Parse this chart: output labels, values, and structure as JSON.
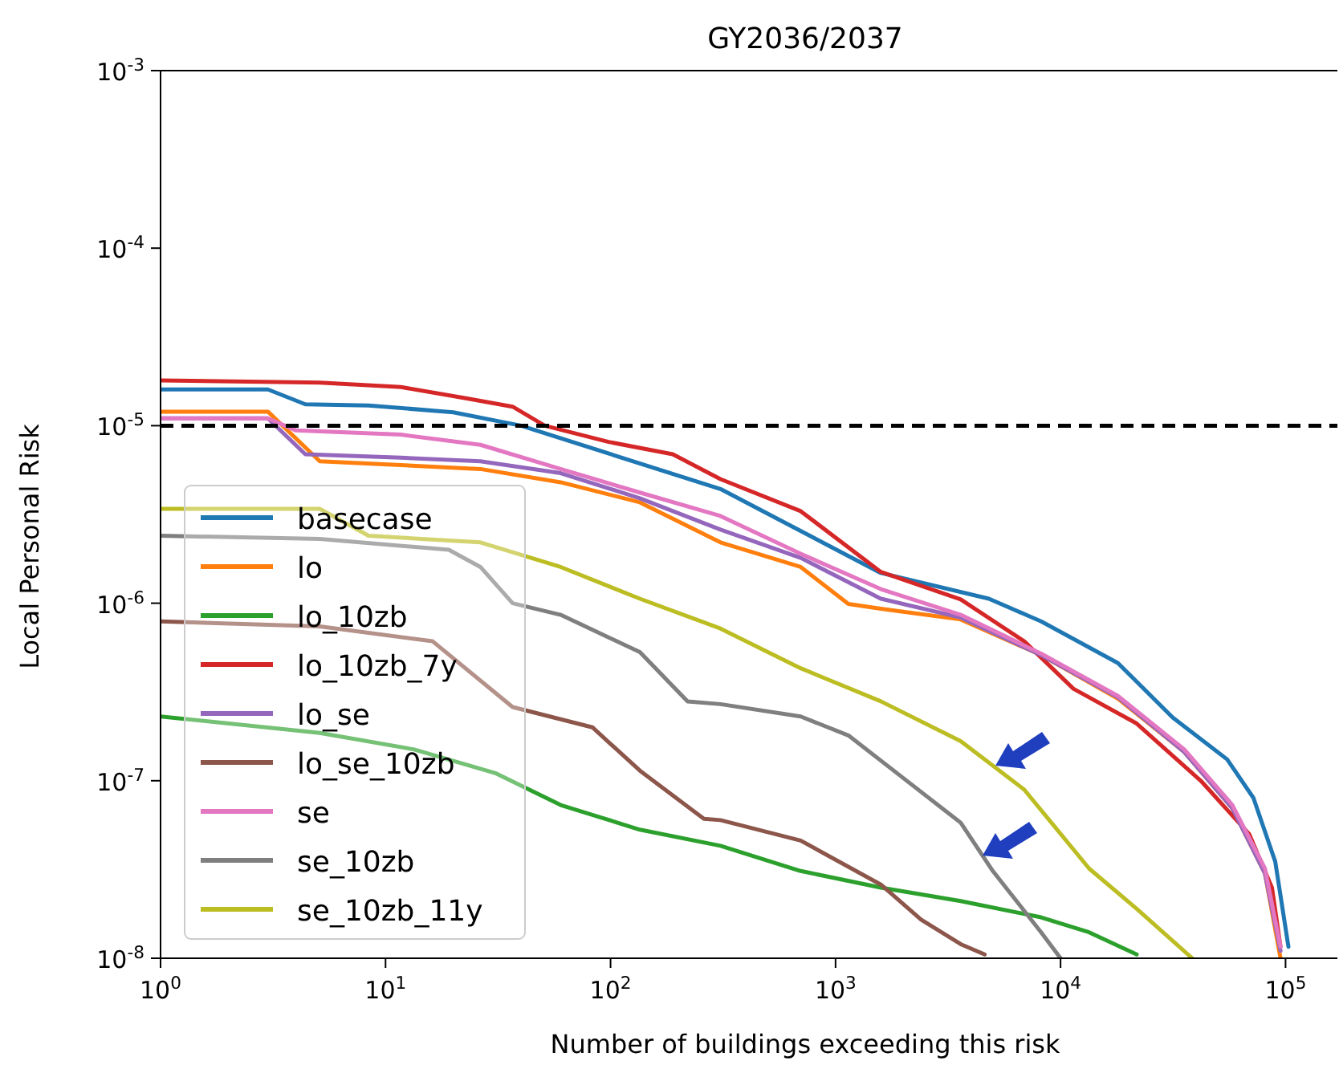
{
  "chart_data": {
    "type": "line",
    "title": "GY2036/2037",
    "xlabel": "Number of buildings exceeding this risk",
    "ylabel": "Local Personal Risk",
    "log": "xy",
    "legend": "bottom left",
    "grid": false,
    "line_style": "solid",
    "marker": "none",
    "xlim": [
      1,
      170000
    ],
    "ylim": [
      1e-08,
      0.001
    ],
    "xticks": [
      {
        "value": 1,
        "label": "10$^{0}$"
      },
      {
        "value": 10,
        "label": "10$^{1}$"
      },
      {
        "value": 100,
        "label": "10$^{2}$"
      },
      {
        "value": 1000,
        "label": "10$^{3}$"
      },
      {
        "value": 10000,
        "label": "10$^{4}$"
      },
      {
        "value": 100000,
        "label": "10$^{5}$"
      }
    ],
    "yticks": [
      {
        "value": 1e-08,
        "label": "10$^{-8}$"
      },
      {
        "value": 1e-07,
        "label": "10$^{-7}$"
      },
      {
        "value": 1e-06,
        "label": "10$^{-6}$"
      },
      {
        "value": 1e-05,
        "label": "10$^{-5}$"
      },
      {
        "value": 0.0001,
        "label": "10$^{-4}$"
      },
      {
        "value": 0.001,
        "label": "10$^{-3}$"
      }
    ],
    "ref_lines": [
      {
        "axis": "y",
        "value": 1e-05,
        "color": "#000000",
        "line_style": "dashed"
      }
    ],
    "series": [
      {
        "name": "basecase",
        "color": "#1f77b4",
        "x": [
          1,
          3,
          4.4,
          8.4,
          20,
          40,
          308,
          1590,
          4800,
          8200,
          18000,
          31500,
          55000,
          72000,
          90000,
          103000
        ],
        "values": [
          1.6e-05,
          1.6e-05,
          1.32e-05,
          1.3e-05,
          1.19e-05,
          1e-05,
          4.4e-06,
          1.48e-06,
          1.06e-06,
          7.9e-07,
          4.6e-07,
          2.27e-07,
          1.32e-07,
          8e-08,
          3.5e-08,
          1.16e-08
        ]
      },
      {
        "name": "lo",
        "color": "#ff7f0e",
        "x": [
          1,
          3,
          5.1,
          11.7,
          26.4,
          60,
          135,
          308,
          700,
          1140,
          1590,
          3600,
          8200,
          18000,
          35500,
          58000,
          81000,
          95000
        ],
        "values": [
          1.2e-05,
          1.2e-05,
          6.3e-06,
          6e-06,
          5.7e-06,
          4.8e-06,
          3.7e-06,
          2.2e-06,
          1.6e-06,
          9.9e-07,
          9.3e-07,
          8.1e-07,
          5.1e-07,
          2.9e-07,
          1.45e-07,
          7e-08,
          3e-08,
          1e-08
        ]
      },
      {
        "name": "lo_10zb",
        "color": "#2ca02c",
        "x": [
          1,
          5.1,
          13.4,
          31,
          60,
          135,
          308,
          700,
          1590,
          3600,
          8200,
          13400,
          21800
        ],
        "values": [
          2.3e-07,
          1.86e-07,
          1.5e-07,
          1.1e-07,
          7.3e-08,
          5.3e-08,
          4.3e-08,
          3.1e-08,
          2.5e-08,
          2.1e-08,
          1.7e-08,
          1.4e-08,
          1.05e-08
        ]
      },
      {
        "name": "lo_10zb_7y",
        "color": "#d62728",
        "x": [
          1,
          5.1,
          11.7,
          22.5,
          36.7,
          51,
          98,
          189,
          308,
          700,
          1590,
          3600,
          6900,
          11400,
          21800,
          42000,
          69000,
          87000,
          95000
        ],
        "values": [
          1.8e-05,
          1.75e-05,
          1.65e-05,
          1.43e-05,
          1.28e-05,
          1e-05,
          8.1e-06,
          6.9e-06,
          5e-06,
          3.3e-06,
          1.5e-06,
          1.05e-06,
          6.1e-07,
          3.3e-07,
          2.1e-07,
          1e-07,
          5e-08,
          2.5e-08,
          1.16e-08
        ]
      },
      {
        "name": "lo_se",
        "color": "#9467bd",
        "x": [
          1,
          3,
          4.4,
          11.7,
          26.4,
          60,
          135,
          308,
          700,
          1590,
          3600,
          8200,
          18000,
          35500,
          58000,
          81000,
          95000
        ],
        "values": [
          1.1e-05,
          1.1e-05,
          6.9e-06,
          6.6e-06,
          6.3e-06,
          5.4e-06,
          3.9e-06,
          2.6e-06,
          1.8e-06,
          1.06e-06,
          8.3e-07,
          5.1e-07,
          2.95e-07,
          1.45e-07,
          7e-08,
          3e-08,
          1.1e-08
        ]
      },
      {
        "name": "lo_se_10zb",
        "color": "#8c564b",
        "x": [
          1,
          5.1,
          16.2,
          36.7,
          83,
          135,
          260,
          308,
          700,
          1590,
          2400,
          3600,
          4600
        ],
        "values": [
          7.9e-07,
          7.4e-07,
          6.1e-07,
          2.6e-07,
          2e-07,
          1.14e-07,
          6.1e-08,
          6e-08,
          4.6e-08,
          2.6e-08,
          1.65e-08,
          1.2e-08,
          1.05e-08
        ]
      },
      {
        "name": "se",
        "color": "#e377c2",
        "x": [
          1,
          3,
          4,
          11.7,
          26.4,
          60,
          135,
          308,
          700,
          1590,
          3600,
          8200,
          18000,
          35500,
          58000,
          81000,
          95000
        ],
        "values": [
          1.1e-05,
          1.1e-05,
          9.4e-06,
          8.9e-06,
          7.8e-06,
          5.7e-06,
          4.2e-06,
          3.1e-06,
          1.9e-06,
          1.2e-06,
          8.6e-07,
          5.2e-07,
          3e-07,
          1.5e-07,
          7.3e-08,
          3.2e-08,
          1.16e-08
        ]
      },
      {
        "name": "se_10zb",
        "color": "#7f7f7f",
        "x": [
          1,
          5.1,
          19.1,
          26.4,
          36.7,
          60,
          135,
          220,
          308,
          700,
          1140,
          1880,
          3600,
          5000,
          8200,
          10000
        ],
        "values": [
          2.4e-06,
          2.3e-06,
          2e-06,
          1.6e-06,
          1e-06,
          8.6e-07,
          5.3e-07,
          2.8e-07,
          2.7e-07,
          2.3e-07,
          1.8e-07,
          1.1e-07,
          5.8e-08,
          3.1e-08,
          1.4e-08,
          1e-08
        ]
      },
      {
        "name": "se_10zb_11y",
        "color": "#bcbd22",
        "x": [
          1,
          5.1,
          8.4,
          26.4,
          60,
          135,
          308,
          700,
          1590,
          3600,
          6900,
          13400,
          21800,
          38500
        ],
        "values": [
          3.4e-06,
          3.4e-06,
          2.4e-06,
          2.2e-06,
          1.6e-06,
          1.06e-06,
          7.2e-07,
          4.3e-07,
          2.8e-07,
          1.67e-07,
          8.9e-08,
          3.2e-08,
          1.9e-08,
          1e-08
        ]
      }
    ]
  }
}
